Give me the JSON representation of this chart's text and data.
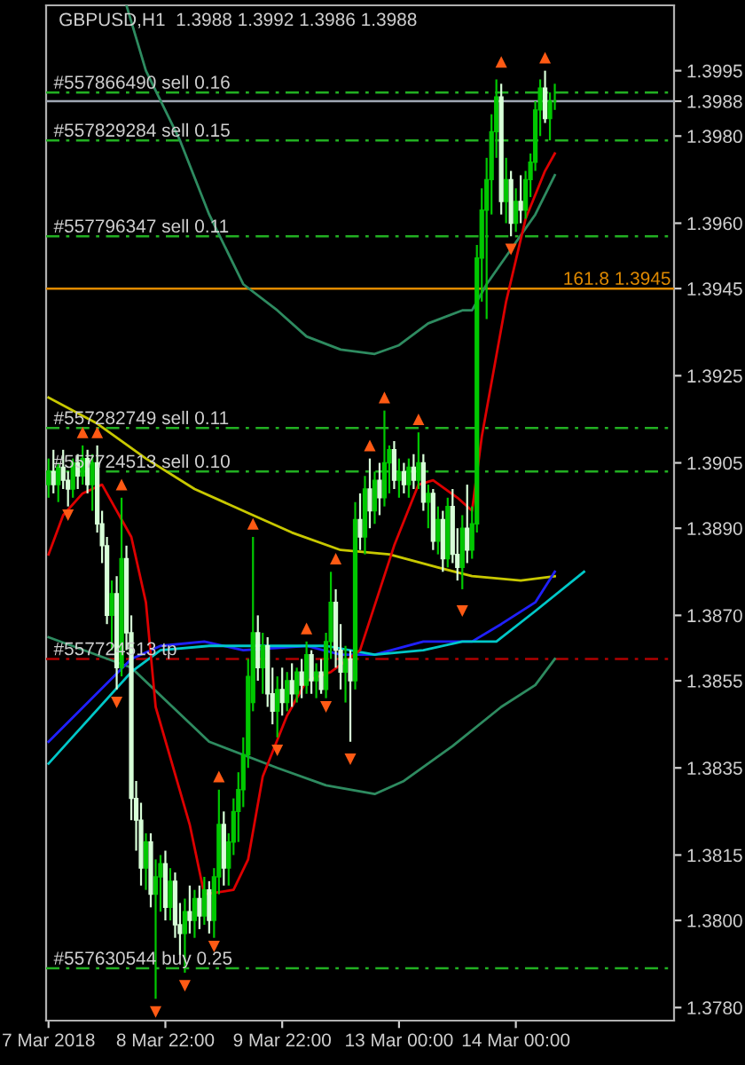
{
  "chart_data": {
    "type": "candlestick",
    "title": "GBPUSD,H1  1.3988 1.3992 1.3986 1.3988",
    "categories": [
      "7 Mar 2018",
      null,
      null,
      null,
      null,
      null,
      null,
      null,
      null,
      null,
      null,
      null,
      null,
      null,
      null,
      null,
      null,
      null,
      null,
      null,
      null,
      null,
      null,
      null,
      "8 Mar 22:00",
      null,
      null,
      null,
      null,
      null,
      null,
      null,
      null,
      null,
      null,
      null,
      null,
      null,
      null,
      null,
      null,
      null,
      null,
      null,
      null,
      null,
      null,
      null,
      "9 Mar 22:00",
      null,
      null,
      null,
      null,
      null,
      null,
      null,
      null,
      null,
      null,
      null,
      null,
      null,
      null,
      null,
      null,
      null,
      null,
      null,
      null,
      null,
      null,
      null,
      "13 Mar 00:00",
      null,
      null,
      null,
      null,
      null,
      null,
      null,
      null,
      null,
      null,
      null,
      null,
      null,
      null,
      null,
      null,
      null,
      null,
      null,
      null,
      null,
      null,
      null,
      "14 Mar 00:00",
      null,
      null,
      null,
      null,
      null,
      null,
      null,
      null,
      null,
      null,
      null,
      null,
      null,
      null,
      null,
      null,
      null,
      null,
      null,
      null,
      null,
      null,
      null,
      null,
      null,
      null,
      null,
      null,
      null,
      null,
      null,
      null
    ],
    "ylim": [
      1.3777,
      1.401
    ],
    "yticks": [
      1.3995,
      {
        "value": 1.3988,
        "label": "1.3988"
      },
      {
        "value": 1.398,
        "label": "1.3980"
      },
      {
        "value": 1.396,
        "label": "1.3960"
      },
      1.3945,
      1.3925,
      1.3905,
      {
        "value": 1.389,
        "label": "1.3890"
      },
      {
        "value": 1.387,
        "label": "1.3870"
      },
      1.3855,
      1.3835,
      1.3815,
      {
        "value": 1.38,
        "label": "1.3800"
      },
      {
        "value": 1.378,
        "label": "1.3780"
      }
    ],
    "colors": [
      "#00c800",
      "#d8ffd8",
      "#00c800",
      "#d8ffd8",
      "#d8ffd8",
      "#00c800",
      "#d8ffd8",
      "#00c800",
      "#d8ffd8",
      "#00c800",
      "#d8ffd8",
      "#d8ffd8",
      "#d8ffd8",
      "#00c800",
      "#d8ffd8",
      "#00c800",
      "#d8ffd8",
      "#d8ffd8",
      "#d8ffd8",
      "#d8ffd8",
      "#00c800",
      "#d8ffd8",
      "#00c800",
      "#00c800",
      "#d8ffd8",
      "#00c800",
      "#d8ffd8",
      "#d8ffd8",
      "#00c800",
      "#d8ffd8",
      "#00c800",
      "#d8ffd8",
      "#00c800",
      "#d8ffd8",
      "#00c800",
      "#00c800",
      "#d8ffd8",
      "#00c800",
      "#00c800",
      "#00c800",
      "#00c800",
      "#00c800",
      "#00c800",
      "#d8ffd8",
      "#00c800",
      "#d8ffd8",
      "#d8ffd8",
      "#00c800",
      "#d8ffd8",
      "#00c800",
      "#d8ffd8",
      "#00c800",
      "#d8ffd8",
      "#00c800",
      "#d8ffd8",
      "#00c800",
      "#d8ffd8",
      "#00c800",
      "#00c800",
      "#d8ffd8",
      "#d8ffd8",
      "#00c800",
      "#d8ffd8",
      "#00c800",
      "#d8ffd8",
      "#00c800",
      "#d8ffd8",
      "#00c800",
      "#d8ffd8",
      "#00c800",
      "#00c800",
      "#d8ffd8",
      "#00c800",
      "#d8ffd8",
      "#00c800",
      "#d8ffd8",
      "#00c800",
      "#d8ffd8",
      "#00c800",
      "#d8ffd8",
      "#00c800",
      "#d8ffd8",
      "#00c800",
      "#d8ffd8",
      "#d8ffd8",
      "#00c800",
      "#d8ffd8",
      "#00c800",
      "#00c800",
      "#00c800",
      "#00c800",
      "#00c800",
      "#00c800",
      "#d8ffd8",
      "#00c800",
      "#d8ffd8",
      "#00c800",
      "#d8ffd8",
      "#00c800",
      "#00c800",
      "#00c800",
      "#00c800",
      "#d8ffd8",
      "#00c800",
      "#00c800",
      null,
      null,
      null,
      null,
      null,
      null,
      null,
      null,
      null,
      null,
      null,
      null,
      null,
      null,
      null,
      null,
      null,
      null,
      null,
      null,
      null,
      null,
      null,
      null
    ],
    "ohlc": [
      [
        1.39,
        1.3906,
        1.3897,
        1.3903
      ],
      [
        1.3903,
        1.3908,
        1.3898,
        1.39
      ],
      [
        1.39,
        1.3905,
        1.3896,
        1.3904
      ],
      [
        1.3904,
        1.3908,
        1.3899,
        1.3901
      ],
      [
        1.3901,
        1.3903,
        1.3895,
        1.3899
      ],
      [
        1.3899,
        1.3906,
        1.3897,
        1.3905
      ],
      [
        1.3905,
        1.3907,
        1.3899,
        1.3902
      ],
      [
        1.3902,
        1.3909,
        1.39,
        1.3906
      ],
      [
        1.3906,
        1.3908,
        1.3898,
        1.39
      ],
      [
        1.39,
        1.3907,
        1.3894,
        1.3905
      ],
      [
        1.3905,
        1.3909,
        1.3889,
        1.3891
      ],
      [
        1.3891,
        1.3894,
        1.3882,
        1.3886
      ],
      [
        1.3886,
        1.3888,
        1.3868,
        1.387
      ],
      [
        1.387,
        1.3878,
        1.3862,
        1.3875
      ],
      [
        1.3875,
        1.3879,
        1.3853,
        1.3858
      ],
      [
        1.3858,
        1.3897,
        1.3856,
        1.3883
      ],
      [
        1.3883,
        1.3886,
        1.3862,
        1.3866
      ],
      [
        1.3866,
        1.387,
        1.3823,
        1.3828
      ],
      [
        1.3828,
        1.3832,
        1.3816,
        1.3823
      ],
      [
        1.3823,
        1.3827,
        1.3808,
        1.3812
      ],
      [
        1.3812,
        1.382,
        1.3807,
        1.3818
      ],
      [
        1.3818,
        1.382,
        1.3803,
        1.3806
      ],
      [
        1.3806,
        1.3814,
        1.3782,
        1.381
      ],
      [
        1.381,
        1.3815,
        1.3802,
        1.3813
      ],
      [
        1.3813,
        1.3816,
        1.38,
        1.3803
      ],
      [
        1.3803,
        1.3812,
        1.38,
        1.3809
      ],
      [
        1.3809,
        1.3811,
        1.3796,
        1.3799
      ],
      [
        1.3799,
        1.3804,
        1.3792,
        1.3797
      ],
      [
        1.3797,
        1.3805,
        1.3788,
        1.3802
      ],
      [
        1.3802,
        1.3808,
        1.3797,
        1.38
      ],
      [
        1.38,
        1.3807,
        1.3796,
        1.3805
      ],
      [
        1.3805,
        1.3808,
        1.3798,
        1.3801
      ],
      [
        1.3801,
        1.381,
        1.3799,
        1.3807
      ],
      [
        1.3807,
        1.3809,
        1.3797,
        1.38
      ],
      [
        1.38,
        1.3812,
        1.3796,
        1.381
      ],
      [
        1.381,
        1.383,
        1.3806,
        1.3822
      ],
      [
        1.3822,
        1.3825,
        1.3808,
        1.3812
      ],
      [
        1.3812,
        1.382,
        1.3808,
        1.3818
      ],
      [
        1.3818,
        1.3828,
        1.3815,
        1.3825
      ],
      [
        1.3825,
        1.3834,
        1.3818,
        1.383
      ],
      [
        1.383,
        1.3842,
        1.3826,
        1.3838
      ],
      [
        1.3838,
        1.386,
        1.3835,
        1.3856
      ],
      [
        1.385,
        1.3888,
        1.3848,
        1.3866
      ],
      [
        1.3866,
        1.387,
        1.3855,
        1.3858
      ],
      [
        1.3858,
        1.3866,
        1.3852,
        1.3863
      ],
      [
        1.3863,
        1.3865,
        1.3849,
        1.3852
      ],
      [
        1.3852,
        1.3858,
        1.3845,
        1.3848
      ],
      [
        1.3848,
        1.3856,
        1.3842,
        1.3853
      ],
      [
        1.3853,
        1.3858,
        1.3847,
        1.385
      ],
      [
        1.385,
        1.3857,
        1.3848,
        1.3855
      ],
      [
        1.3855,
        1.3859,
        1.3849,
        1.3852
      ],
      [
        1.3852,
        1.3858,
        1.385,
        1.3857
      ],
      [
        1.3857,
        1.386,
        1.3851,
        1.3854
      ],
      [
        1.3854,
        1.3864,
        1.3852,
        1.3861
      ],
      [
        1.3861,
        1.3862,
        1.3852,
        1.3855
      ],
      [
        1.3855,
        1.3859,
        1.3851,
        1.3857
      ],
      [
        1.3857,
        1.386,
        1.3852,
        1.3853
      ],
      [
        1.3853,
        1.3866,
        1.3851,
        1.3864
      ],
      [
        1.3864,
        1.388,
        1.386,
        1.3873
      ],
      [
        1.3873,
        1.3876,
        1.3858,
        1.3862
      ],
      [
        1.3862,
        1.3868,
        1.3853,
        1.3857
      ],
      [
        1.3857,
        1.3863,
        1.385,
        1.386
      ],
      [
        1.386,
        1.3862,
        1.3841,
        1.3855
      ],
      [
        1.3855,
        1.3896,
        1.3853,
        1.3892
      ],
      [
        1.3892,
        1.3898,
        1.3885,
        1.3888
      ],
      [
        1.3888,
        1.3902,
        1.3884,
        1.3899
      ],
      [
        1.3899,
        1.3906,
        1.389,
        1.3894
      ],
      [
        1.3894,
        1.3903,
        1.3891,
        1.3901
      ],
      [
        1.3901,
        1.3905,
        1.3893,
        1.3897
      ],
      [
        1.3897,
        1.3917,
        1.3895,
        1.3905
      ],
      [
        1.3905,
        1.3909,
        1.3898,
        1.3908
      ],
      [
        1.3908,
        1.391,
        1.3899,
        1.3901
      ],
      [
        1.3901,
        1.3906,
        1.3897,
        1.3903
      ],
      [
        1.3903,
        1.3905,
        1.3898,
        1.39
      ],
      [
        1.39,
        1.3906,
        1.3897,
        1.3904
      ],
      [
        1.3904,
        1.3907,
        1.3899,
        1.3901
      ],
      [
        1.3901,
        1.3912,
        1.3899,
        1.3905
      ],
      [
        1.3905,
        1.3907,
        1.3894,
        1.3896
      ],
      [
        1.3896,
        1.39,
        1.389,
        1.3898
      ],
      [
        1.3898,
        1.3899,
        1.3885,
        1.3887
      ],
      [
        1.3887,
        1.3895,
        1.3884,
        1.3892
      ],
      [
        1.3892,
        1.3894,
        1.388,
        1.3883
      ],
      [
        1.3883,
        1.3897,
        1.3881,
        1.3895
      ],
      [
        1.3895,
        1.3899,
        1.3882,
        1.3884
      ],
      [
        1.3884,
        1.389,
        1.3878,
        1.3881
      ],
      [
        1.3881,
        1.3893,
        1.3876,
        1.389
      ],
      [
        1.389,
        1.39,
        1.3882,
        1.3885
      ],
      [
        1.3885,
        1.3895,
        1.3883,
        1.3891
      ],
      [
        1.3891,
        1.3955,
        1.3889,
        1.3952
      ],
      [
        1.3952,
        1.3968,
        1.3942,
        1.3963
      ],
      [
        1.3963,
        1.3975,
        1.3938,
        1.397
      ],
      [
        1.397,
        1.3985,
        1.3962,
        1.3981
      ],
      [
        1.3981,
        1.3993,
        1.3975,
        1.3989
      ],
      [
        1.3989,
        1.3992,
        1.3962,
        1.3965
      ],
      [
        1.3965,
        1.3975,
        1.396,
        1.397
      ],
      [
        1.397,
        1.3972,
        1.3957,
        1.396
      ],
      [
        1.396,
        1.3968,
        1.3958,
        1.3965
      ],
      [
        1.3965,
        1.3971,
        1.396,
        1.3963
      ],
      [
        1.3963,
        1.3972,
        1.3961,
        1.397
      ],
      [
        1.397,
        1.3976,
        1.3966,
        1.3974
      ],
      [
        1.3974,
        1.3988,
        1.3972,
        1.3986
      ],
      [
        1.3986,
        1.3993,
        1.398,
        1.3991
      ],
      [
        1.3991,
        1.3995,
        1.3983,
        1.3984
      ],
      [
        1.3984,
        1.399,
        1.3979,
        1.3988
      ],
      [
        1.3988,
        1.3992,
        1.3986,
        1.3988
      ],
      null,
      null,
      null,
      null,
      null,
      null,
      null,
      null,
      null,
      null,
      null,
      null,
      null,
      null,
      null,
      null,
      null,
      null,
      null,
      null,
      null,
      null,
      null,
      null
    ],
    "series": [
      {
        "type": "line",
        "color": "#2e8b60",
        "values": [
          null,
          null,
          null,
          null,
          null,
          null,
          null,
          null,
          null,
          null,
          null,
          null,
          null,
          null,
          null,
          null,
          1.401,
          null,
          null,
          null,
          1.3995,
          null,
          null,
          null,
          null,
          null,
          null,
          1.3979,
          null,
          null,
          null,
          null,
          null,
          1.3962,
          null,
          null,
          null,
          null,
          null,
          null,
          1.3946,
          null,
          null,
          null,
          null,
          null,
          null,
          1.394,
          null,
          null,
          null,
          null,
          null,
          1.3934,
          null,
          null,
          null,
          null,
          null,
          null,
          1.3931,
          null,
          null,
          null,
          null,
          null,
          null,
          1.393,
          null,
          null,
          null,
          null,
          1.3932,
          null,
          null,
          null,
          null,
          null,
          1.3937,
          null,
          null,
          null,
          null,
          null,
          null,
          1.394,
          null,
          1.394,
          null,
          null,
          1.3946,
          null,
          null,
          null,
          null,
          1.3954,
          null,
          null,
          null,
          null,
          1.3962,
          null,
          null,
          null,
          1.3971,
          null,
          null,
          null,
          null,
          null,
          null,
          null,
          null,
          null,
          null,
          null,
          null,
          null,
          null,
          null,
          null,
          null,
          null,
          null,
          null,
          null,
          null,
          null,
          null
        ]
      },
      {
        "type": "line",
        "color": "#2e8b60",
        "values": [
          1.3865,
          null,
          null,
          null,
          null,
          null,
          null,
          null,
          null,
          null,
          null,
          null,
          null,
          null,
          null,
          null,
          null,
          1.3858,
          null,
          null,
          null,
          null,
          null,
          null,
          null,
          null,
          null,
          null,
          null,
          null,
          null,
          null,
          null,
          1.3841,
          null,
          null,
          null,
          null,
          null,
          null,
          null,
          null,
          null,
          null,
          null,
          null,
          null,
          1.3835,
          null,
          null,
          null,
          null,
          null,
          null,
          null,
          null,
          null,
          1.3831,
          null,
          null,
          null,
          null,
          null,
          null,
          null,
          null,
          null,
          1.3829,
          null,
          null,
          null,
          null,
          null,
          1.3832,
          null,
          null,
          null,
          null,
          null,
          null,
          null,
          null,
          null,
          1.384,
          null,
          null,
          null,
          null,
          null,
          null,
          null,
          null,
          null,
          1.3849,
          null,
          null,
          null,
          null,
          null,
          null,
          1.3854,
          null,
          null,
          null,
          1.386,
          null,
          null,
          null,
          null,
          null,
          null,
          null,
          null,
          null,
          null,
          null,
          null,
          null,
          null,
          null,
          null,
          null,
          null,
          null,
          null,
          null,
          null,
          null,
          null
        ]
      },
      {
        "type": "line",
        "color": "#c8c800",
        "values": [
          1.392,
          null,
          null,
          null,
          null,
          null,
          null,
          null,
          null,
          null,
          1.3914,
          null,
          null,
          null,
          null,
          null,
          null,
          null,
          null,
          null,
          1.3906,
          null,
          null,
          null,
          null,
          null,
          null,
          null,
          null,
          null,
          1.3899,
          null,
          null,
          null,
          null,
          null,
          null,
          null,
          null,
          null,
          null,
          null,
          1.3893,
          null,
          null,
          null,
          null,
          null,
          null,
          null,
          1.3889,
          null,
          null,
          null,
          null,
          null,
          null,
          null,
          null,
          null,
          1.3885,
          null,
          null,
          null,
          null,
          null,
          null,
          null,
          null,
          null,
          1.3884,
          null,
          null,
          null,
          null,
          null,
          null,
          null,
          null,
          null,
          1.3881,
          null,
          null,
          null,
          null,
          null,
          null,
          1.3879,
          null,
          null,
          null,
          null,
          null,
          null,
          null,
          null,
          null,
          1.3878,
          null,
          null,
          null,
          null,
          null,
          null,
          1.3879,
          null,
          null,
          null,
          null,
          null,
          null,
          null,
          null,
          null,
          null,
          null,
          null,
          null,
          null,
          null,
          null,
          null,
          null,
          null,
          null,
          null,
          null,
          null,
          null
        ]
      },
      {
        "type": "line",
        "color": "#2020ff",
        "values": [
          1.3841,
          null,
          null,
          null,
          null,
          null,
          null,
          null,
          null,
          null,
          null,
          null,
          null,
          null,
          null,
          null,
          null,
          1.386,
          null,
          null,
          null,
          null,
          null,
          1.3863,
          null,
          null,
          null,
          null,
          null,
          null,
          null,
          null,
          1.3864,
          null,
          null,
          null,
          null,
          null,
          null,
          null,
          1.3862,
          null,
          null,
          null,
          null,
          null,
          null,
          null,
          null,
          null,
          null,
          null,
          null,
          1.3863,
          null,
          null,
          null,
          null,
          null,
          null,
          1.3861,
          null,
          null,
          null,
          null,
          null,
          null,
          1.3861,
          null,
          null,
          null,
          null,
          null,
          null,
          null,
          null,
          null,
          1.3864,
          null,
          null,
          null,
          null,
          null,
          null,
          null,
          null,
          null,
          1.3864,
          null,
          null,
          null,
          null,
          null,
          1.3868,
          null,
          null,
          null,
          null,
          null,
          null,
          1.3873,
          null,
          null,
          null,
          1.388,
          null,
          null,
          null,
          null,
          null,
          null,
          null,
          null,
          null,
          null,
          null,
          null,
          null,
          null,
          null,
          null,
          null,
          null,
          null,
          null,
          null,
          null,
          null,
          null
        ]
      },
      {
        "type": "line",
        "color": "#00c8c8",
        "values": [
          1.3836,
          null,
          null,
          null,
          null,
          null,
          null,
          null,
          null,
          null,
          null,
          null,
          null,
          null,
          null,
          null,
          null,
          1.3857,
          null,
          null,
          null,
          null,
          null,
          1.3862,
          null,
          null,
          null,
          null,
          null,
          null,
          null,
          null,
          null,
          1.3863,
          null,
          null,
          null,
          null,
          null,
          null,
          null,
          null,
          null,
          1.3863,
          null,
          null,
          null,
          null,
          null,
          null,
          null,
          null,
          null,
          null,
          null,
          null,
          null,
          1.3863,
          null,
          null,
          null,
          null,
          null,
          null,
          null,
          null,
          null,
          1.3861,
          null,
          null,
          null,
          null,
          null,
          null,
          null,
          null,
          null,
          1.3862,
          null,
          null,
          null,
          null,
          null,
          null,
          null,
          1.3864,
          null,
          null,
          null,
          null,
          null,
          null,
          1.3864,
          null,
          null,
          null,
          null,
          null,
          null,
          null,
          1.3871,
          null,
          null,
          null,
          null,
          null,
          null,
          null,
          null,
          null,
          1.388,
          null,
          null,
          null,
          null,
          null,
          null,
          null,
          null,
          null,
          null,
          null,
          null,
          null,
          null,
          null,
          null,
          null,
          null
        ]
      },
      {
        "type": "line",
        "color": "#dd0000",
        "values": [
          1.3884,
          null,
          null,
          1.3893,
          null,
          null,
          null,
          1.3898,
          null,
          null,
          null,
          1.39,
          null,
          null,
          null,
          null,
          null,
          1.3888,
          null,
          null,
          1.3873,
          null,
          1.3849,
          null,
          null,
          null,
          null,
          null,
          null,
          1.3822,
          null,
          null,
          1.3806,
          null,
          null,
          null,
          null,
          null,
          1.3807,
          null,
          null,
          1.3814,
          null,
          null,
          1.3833,
          null,
          null,
          null,
          null,
          1.3847,
          null,
          null,
          null,
          1.3855,
          null,
          null,
          null,
          null,
          1.3857,
          null,
          null,
          null,
          null,
          null,
          1.3862,
          null,
          null,
          null,
          null,
          null,
          null,
          1.3886,
          null,
          null,
          null,
          null,
          1.39,
          null,
          null,
          1.3901,
          null,
          null,
          null,
          null,
          1.3897,
          null,
          null,
          1.3894,
          null,
          1.3911,
          null,
          null,
          null,
          null,
          1.3942,
          null,
          null,
          null,
          1.3961,
          null,
          null,
          null,
          1.3972,
          null,
          1.3976,
          null,
          null,
          null,
          null,
          null,
          null,
          null,
          null,
          null,
          null,
          null,
          null,
          null,
          null,
          null,
          null,
          null,
          null,
          null,
          null,
          null,
          null,
          null,
          null
        ]
      },
      {
        "type": "scatter",
        "color": "#ff5a14",
        "marker": "triangle",
        "values": [
          null,
          null,
          null,
          null,
          null,
          null,
          null,
          1.3912,
          null,
          null,
          1.3912,
          null,
          null,
          null,
          null,
          1.39,
          null,
          null,
          null,
          null,
          null,
          null,
          null,
          null,
          null,
          null,
          null,
          null,
          null,
          null,
          null,
          null,
          null,
          null,
          null,
          1.3833,
          null,
          null,
          null,
          null,
          null,
          null,
          1.3891,
          null,
          null,
          null,
          null,
          null,
          null,
          null,
          null,
          null,
          null,
          1.3867,
          null,
          null,
          null,
          null,
          null,
          1.3883,
          null,
          null,
          null,
          null,
          null,
          null,
          1.3909,
          null,
          null,
          1.392,
          null,
          null,
          null,
          null,
          null,
          null,
          1.3915,
          null,
          null,
          null,
          null,
          null,
          null,
          null,
          null,
          null,
          null,
          null,
          null,
          null,
          null,
          null,
          null,
          1.3997,
          null,
          null,
          null,
          null,
          null,
          null,
          null,
          null,
          1.3998,
          null,
          null,
          null,
          null,
          null,
          null,
          null,
          null,
          null,
          null,
          null,
          null,
          null,
          null,
          null,
          null,
          null,
          null,
          null,
          null,
          null,
          null,
          null,
          null,
          null,
          null
        ]
      },
      {
        "type": "scatter",
        "color": "#ff5a14",
        "marker": "triangle_down",
        "values": [
          null,
          null,
          null,
          null,
          1.3893,
          null,
          null,
          null,
          null,
          null,
          null,
          null,
          null,
          null,
          1.385,
          null,
          null,
          null,
          null,
          null,
          null,
          null,
          1.3779,
          null,
          null,
          null,
          null,
          null,
          1.3785,
          null,
          null,
          null,
          null,
          null,
          1.3794,
          null,
          null,
          null,
          null,
          null,
          null,
          null,
          null,
          null,
          null,
          null,
          null,
          1.3839,
          null,
          null,
          null,
          null,
          null,
          null,
          null,
          null,
          null,
          1.3849,
          null,
          null,
          null,
          null,
          1.3837,
          null,
          null,
          null,
          null,
          null,
          null,
          null,
          null,
          null,
          null,
          null,
          null,
          null,
          null,
          null,
          null,
          null,
          null,
          null,
          null,
          null,
          null,
          1.3871,
          null,
          null,
          null,
          null,
          null,
          null,
          null,
          null,
          null,
          1.3954,
          null,
          null,
          null,
          null,
          null,
          null,
          null,
          null,
          null,
          null,
          null,
          null,
          null,
          null,
          null,
          null,
          null,
          null,
          null,
          null,
          null,
          null,
          null,
          null,
          null,
          null,
          null,
          null,
          null,
          null,
          null,
          null,
          null
        ]
      }
    ],
    "ref_lines": [
      {
        "axis": "y",
        "value": 1.399,
        "label": "#557866490 sell 0.16",
        "color": "#22b022",
        "line_style": "dashdot"
      },
      {
        "axis": "y",
        "value": 1.3988,
        "color": "#a0a8b4",
        "line_style": "solid"
      },
      {
        "axis": "y",
        "value": 1.3979,
        "label": "#557829284 sell 0.15",
        "color": "#22b022",
        "line_style": "dashdot"
      },
      {
        "axis": "y",
        "value": 1.3957,
        "label": "#557796347 sell 0.11",
        "color": "#22b022",
        "line_style": "dashdot"
      },
      {
        "axis": "y",
        "value": 1.3945,
        "label": "161.8 1.3945",
        "color": "#e08a00",
        "line_style": "solid"
      },
      {
        "axis": "y",
        "value": 1.3913,
        "label": "#557282749 sell 0.11",
        "color": "#22b022",
        "line_style": "dashdot"
      },
      {
        "axis": "y",
        "value": 1.3903,
        "label": "#557724513 sell 0.10",
        "color": "#22b022",
        "line_style": "dashdot"
      },
      {
        "axis": "y",
        "value": 1.386,
        "label": "#557724513 tp",
        "color": "#b00000",
        "line_style": "dashdot"
      },
      {
        "axis": "y",
        "value": 1.3789,
        "label": "#557630544 buy 0.25",
        "color": "#22b022",
        "line_style": "dashdot"
      }
    ]
  }
}
